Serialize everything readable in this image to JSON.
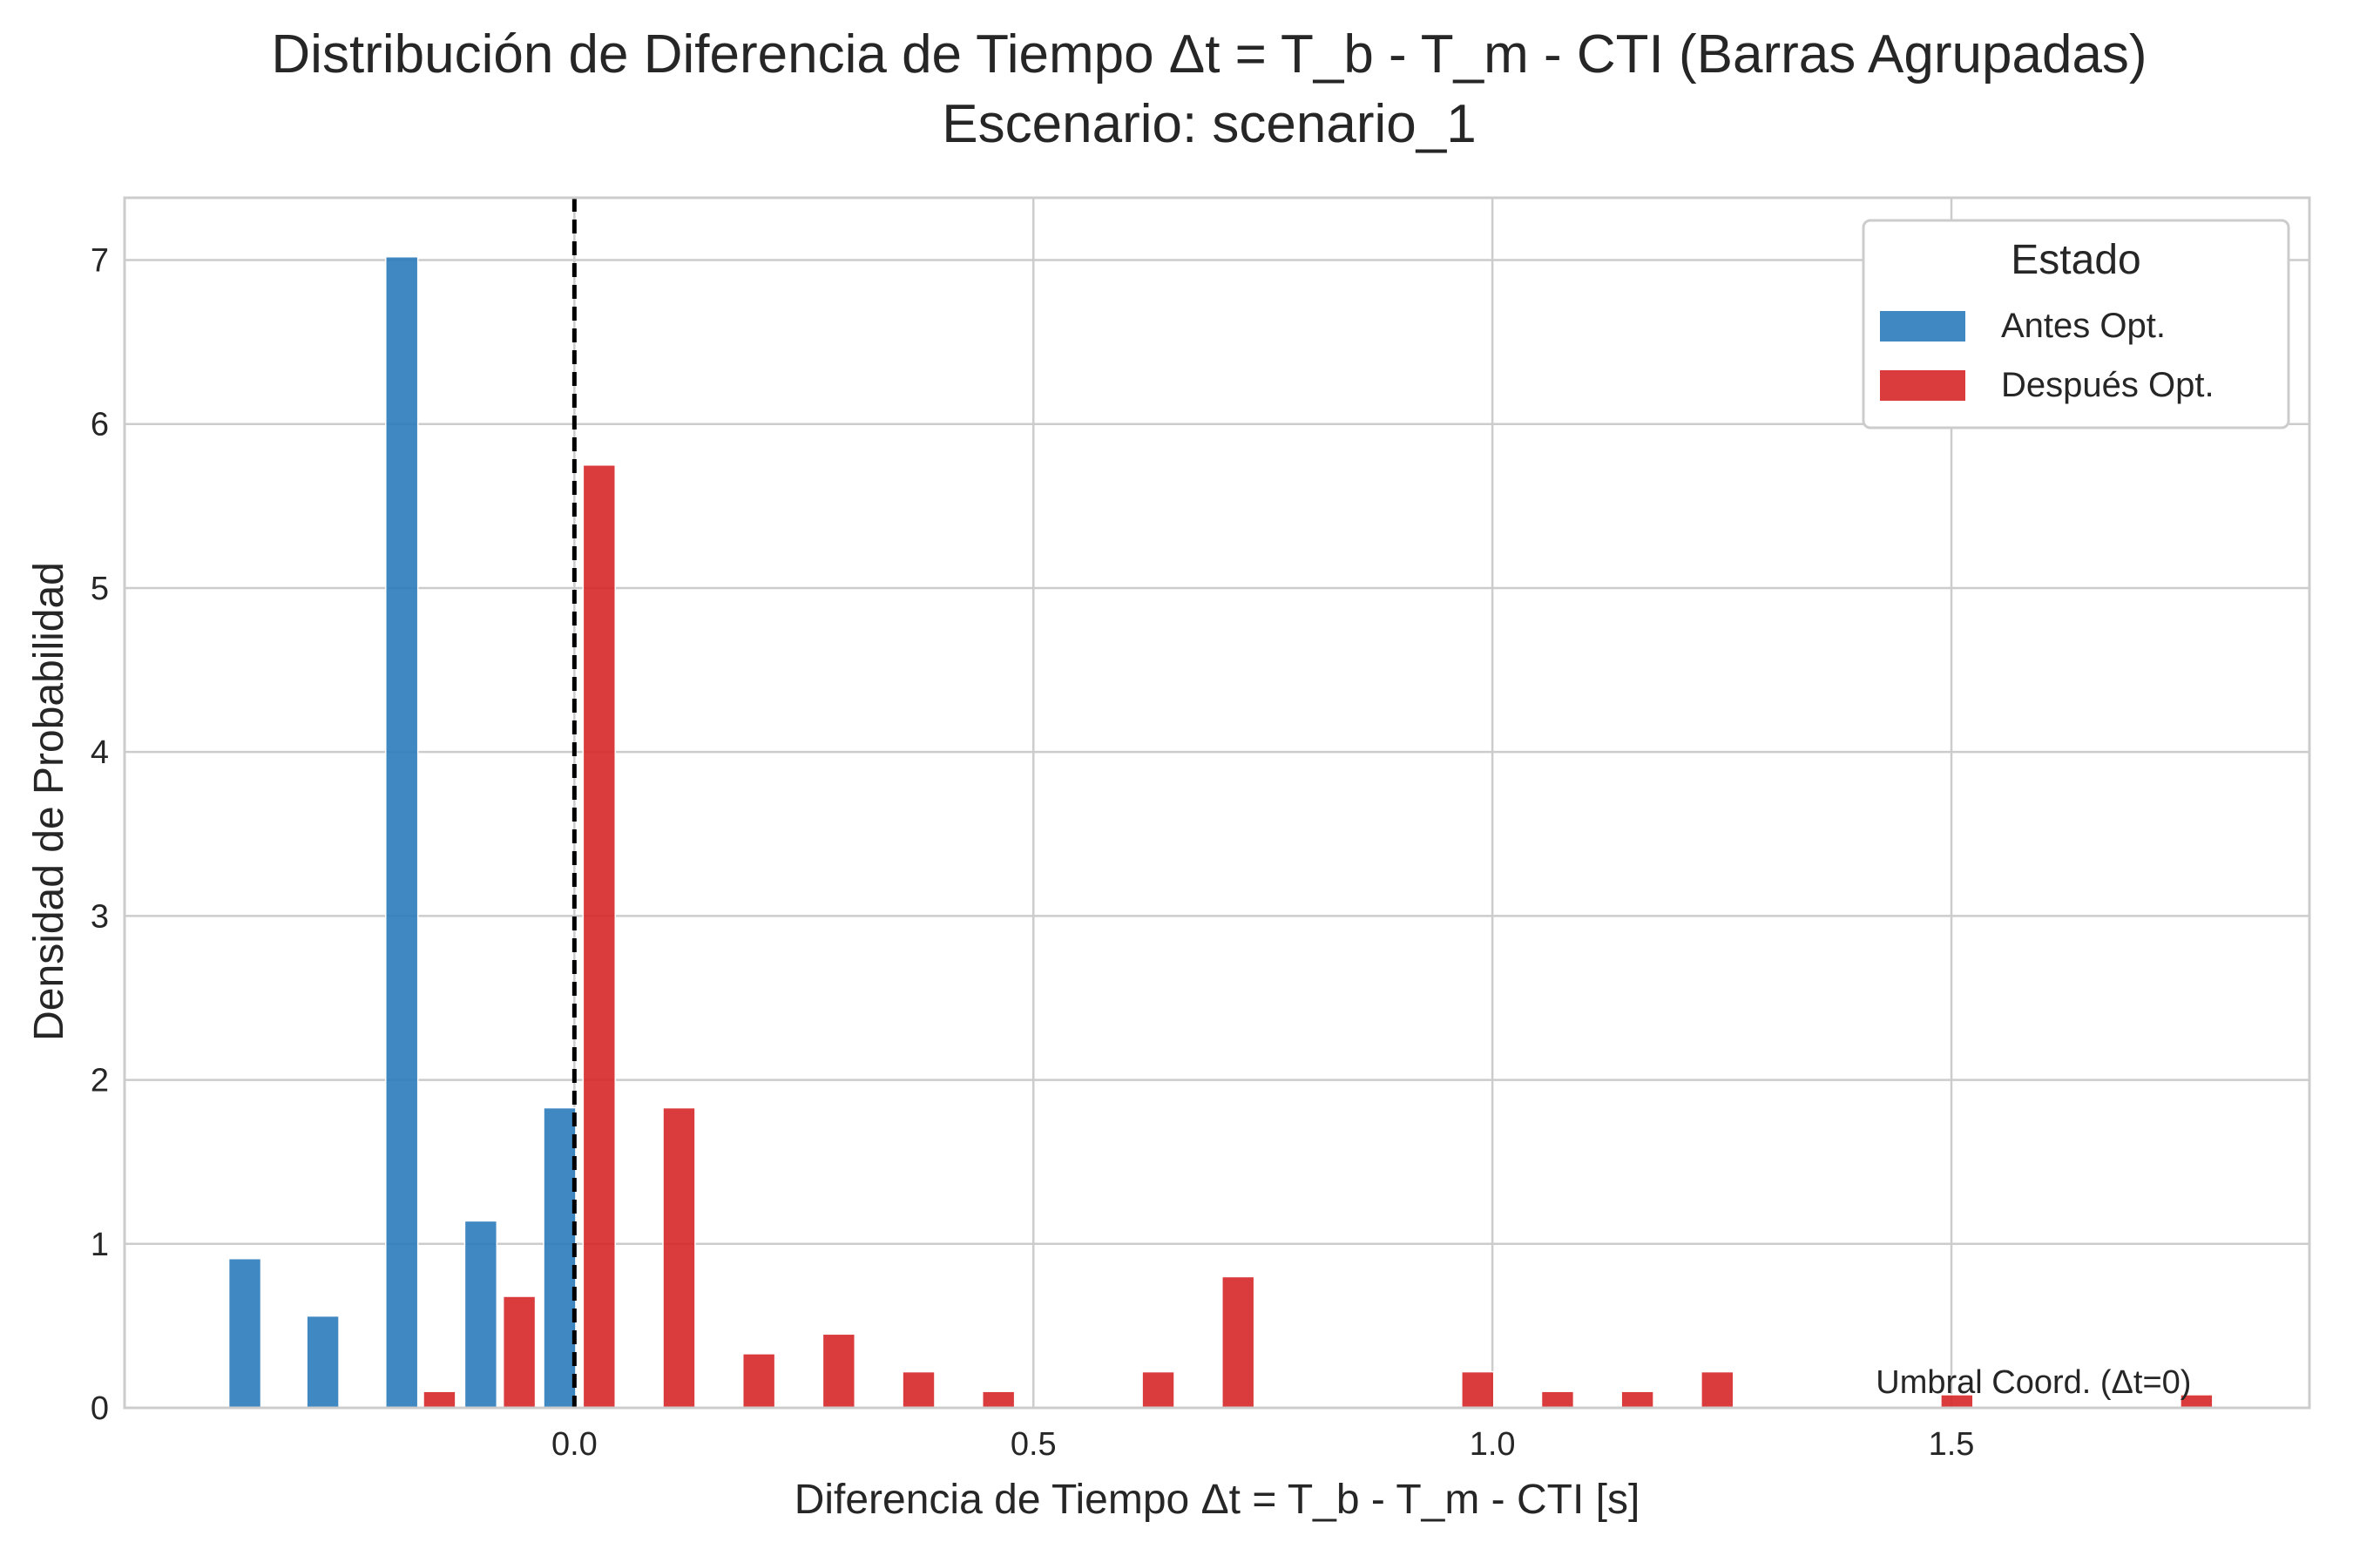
{
  "chart_data": {
    "type": "bar",
    "title": "Distribución de Diferencia de Tiempo Δt = T_b - T_m - CTI  (Barras Agrupadas)",
    "subtitle": "Escenario: scenario_1",
    "xlabel": "Diferencia de Tiempo Δt = T_b - T_m - CTI [s]",
    "ylabel": "Densidad de Probabilidad",
    "xlim": [
      -0.49,
      1.89
    ],
    "ylim": [
      0,
      7.38
    ],
    "xticks": [
      0.0,
      0.5,
      1.0,
      1.5
    ],
    "xtick_labels": [
      "0.0",
      "0.5",
      "1.0",
      "1.5"
    ],
    "yticks": [
      0,
      1,
      2,
      3,
      4,
      5,
      6,
      7
    ],
    "ytick_labels": [
      "0",
      "1",
      "2",
      "3",
      "4",
      "5",
      "6",
      "7"
    ],
    "grid": true,
    "bar_width": 0.035,
    "legend": {
      "title": "Estado",
      "position": "top-right",
      "entries": [
        "Antes Opt.",
        "Después Opt."
      ]
    },
    "series": [
      {
        "name": "Antes Opt.",
        "color": "#2b7bba",
        "x": [
          -0.359,
          -0.274,
          -0.188,
          -0.102,
          -0.016
        ],
        "values": [
          0.91,
          0.56,
          7.02,
          1.14,
          1.83
        ]
      },
      {
        "name": "Después Opt.",
        "color": "#d62728",
        "x": [
          -0.147,
          -0.06,
          0.027,
          0.114,
          0.201,
          0.288,
          0.375,
          0.462,
          0.636,
          0.723,
          0.984,
          1.071,
          1.158,
          1.245,
          1.506,
          1.767
        ],
        "values": [
          0.1,
          0.68,
          5.75,
          1.83,
          0.33,
          0.45,
          0.22,
          0.1,
          0.22,
          0.8,
          0.22,
          0.1,
          0.1,
          0.22,
          0.08,
          0.08
        ]
      }
    ],
    "reference_line": {
      "x": 0.0,
      "style": "dashed",
      "color": "#000000"
    },
    "annotation": {
      "text": "Umbral Coord. (Δt=0)",
      "x": 1.75,
      "y": 0.16
    }
  }
}
